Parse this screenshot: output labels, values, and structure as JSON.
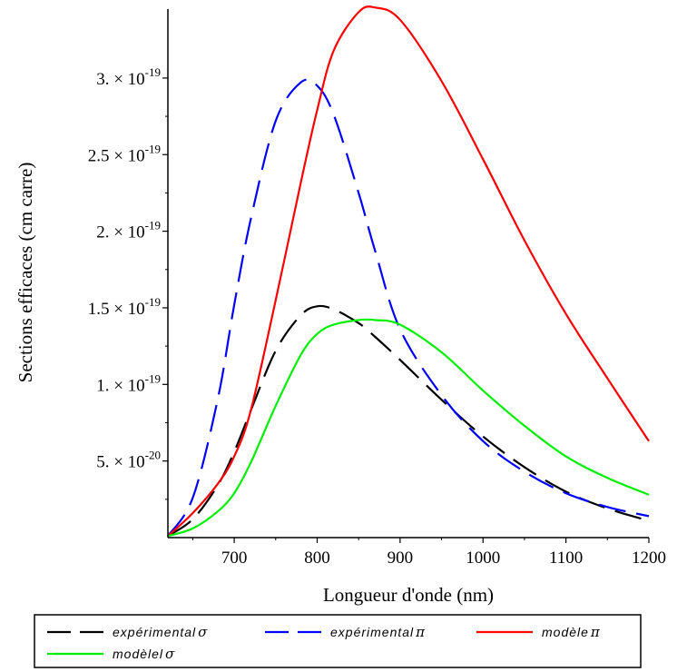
{
  "chart_data": {
    "type": "line",
    "xlabel": "Longueur d'onde (nm)",
    "ylabel": "Sections efficaces (cm carre)",
    "xlim": [
      620,
      1200
    ],
    "ylim": [
      0,
      3.45e-19
    ],
    "x_ticks": [
      700,
      800,
      900,
      1000,
      1100,
      1200
    ],
    "x_tick_labels": [
      "700",
      "800",
      "900",
      "1000",
      "1100",
      "1200"
    ],
    "y_ticks": [
      5e-20,
      1e-19,
      1.5e-19,
      2e-19,
      2.5e-19,
      3e-19
    ],
    "y_tick_labels": [
      {
        "mantissa": "5.",
        "times": "×",
        "base": "10",
        "exponent": "-20"
      },
      {
        "mantissa": "1.",
        "times": "×",
        "base": "10",
        "exponent": "-19"
      },
      {
        "mantissa": "1.5",
        "times": "×",
        "base": "10",
        "exponent": "-19"
      },
      {
        "mantissa": "2.",
        "times": "×",
        "base": "10",
        "exponent": "-19"
      },
      {
        "mantissa": "2.5",
        "times": "×",
        "base": "10",
        "exponent": "-19"
      },
      {
        "mantissa": "3.",
        "times": "×",
        "base": "10",
        "exponent": "-19"
      }
    ],
    "grid": false,
    "legend_position": "bottom",
    "x": [
      620,
      650,
      680,
      700,
      720,
      750,
      780,
      800,
      820,
      850,
      870,
      900,
      950,
      1000,
      1050,
      1100,
      1150,
      1200
    ],
    "series": [
      {
        "name": "expérimental",
        "symbol": "σ",
        "color": "#000000",
        "style": "dashed",
        "values": [
          1e-21,
          1.2e-20,
          3.4e-20,
          5.6e-20,
          8.3e-20,
          1.22e-19,
          1.45e-19,
          1.51e-19,
          1.49e-19,
          1.4e-19,
          1.31e-19,
          1.16e-19,
          9e-20,
          6.6e-20,
          4.6e-20,
          3e-20,
          1.9e-20,
          1.1e-20
        ]
      },
      {
        "name": "expérimental",
        "symbol": "π",
        "color": "#0000ff",
        "style": "dashed",
        "values": [
          1e-21,
          2.6e-20,
          9e-20,
          1.52e-19,
          2.08e-19,
          2.72e-19,
          2.97e-19,
          2.95e-19,
          2.76e-19,
          2.25e-19,
          1.87e-19,
          1.36e-19,
          9.3e-20,
          6.3e-20,
          4.3e-20,
          2.9e-20,
          2e-20,
          1.4e-20
        ]
      },
      {
        "name": "modèle",
        "symbol": "π",
        "color": "#ff0000",
        "style": "solid",
        "values": [
          1e-21,
          1.6e-20,
          3.5e-20,
          5.3e-20,
          8.3e-20,
          1.55e-19,
          2.31e-19,
          2.79e-19,
          3.18e-19,
          3.43e-19,
          3.46e-19,
          3.38e-19,
          2.98e-19,
          2.47e-19,
          1.94e-19,
          1.46e-19,
          1.04e-19,
          6.3e-20
        ]
      },
      {
        "name": "modèlel",
        "symbol": "σ",
        "color": "#00ee00",
        "style": "solid",
        "values": [
          1e-21,
          6e-21,
          1.7e-20,
          2.9e-20,
          4.9e-20,
          8.6e-20,
          1.19e-19,
          1.33e-19,
          1.39e-19,
          1.42e-19,
          1.42e-19,
          1.39e-19,
          1.21e-19,
          9.6e-20,
          7.3e-20,
          5.3e-20,
          3.9e-20,
          2.8e-20
        ]
      }
    ]
  }
}
